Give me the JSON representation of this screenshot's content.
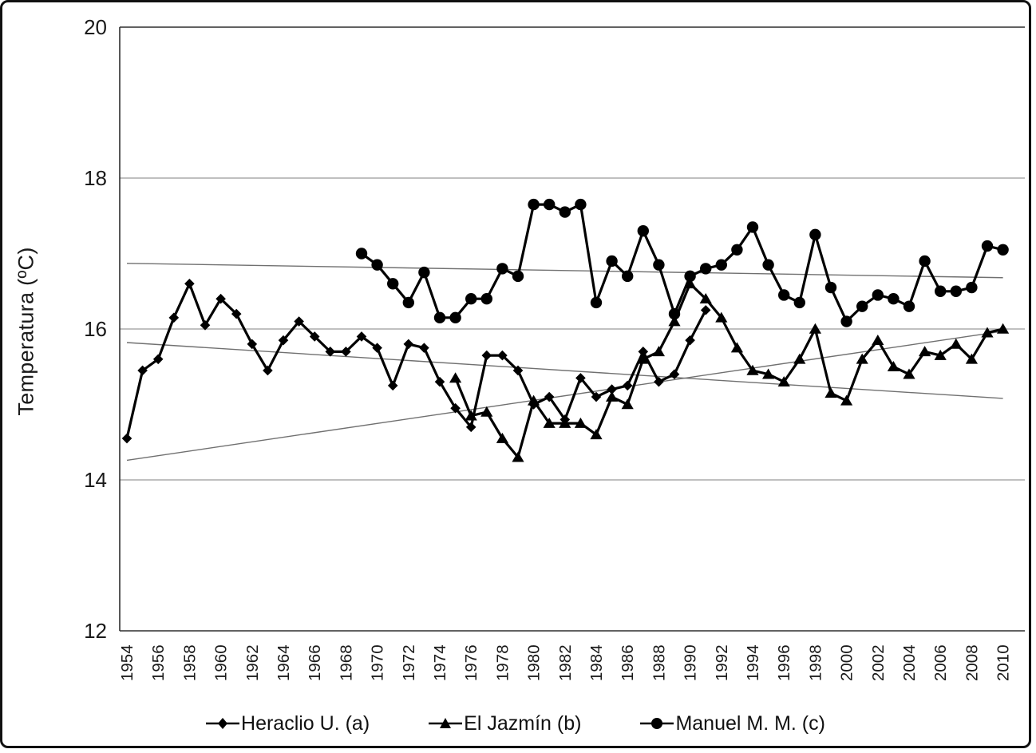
{
  "page": {
    "background": "#ffffff",
    "border_color": "#111111"
  },
  "chart_data": {
    "type": "line",
    "title": "",
    "xlabel": "",
    "ylabel": "Temperatura (ºC)",
    "ylim": [
      12,
      20
    ],
    "yticks": [
      12,
      14,
      16,
      18,
      20
    ],
    "grid_y": [
      14,
      16,
      18
    ],
    "xticks": [
      1954,
      1956,
      1958,
      1960,
      1962,
      1964,
      1966,
      1968,
      1970,
      1972,
      1974,
      1976,
      1978,
      1980,
      1982,
      1984,
      1986,
      1988,
      1990,
      1992,
      1994,
      1996,
      1998,
      2000,
      2002,
      2004,
      2006,
      2008,
      2010
    ],
    "x_range": [
      1954,
      2010
    ],
    "legend_position": "bottom",
    "colors": {
      "series": "#000000",
      "grid": "#9b9b9b",
      "axis": "#2e2e2e",
      "trend": "#707070"
    },
    "series": [
      {
        "name": "Heraclio U. (a)",
        "marker": "diamond",
        "color": "#000000",
        "start_year": 1954,
        "values": [
          14.55,
          15.45,
          15.6,
          16.15,
          16.6,
          16.05,
          16.4,
          16.2,
          15.8,
          15.45,
          15.85,
          16.1,
          15.9,
          15.7,
          15.7,
          15.9,
          15.75,
          15.25,
          15.8,
          15.75,
          15.3,
          14.95,
          14.7,
          15.65,
          15.65,
          15.45,
          15.0,
          15.1,
          14.8,
          15.35,
          15.1,
          15.2,
          15.25,
          15.7,
          15.3,
          15.4,
          15.85,
          16.25
        ]
      },
      {
        "name": "El Jazmín (b)",
        "marker": "triangle",
        "color": "#000000",
        "start_year": 1975,
        "values": [
          15.35,
          14.85,
          14.9,
          14.55,
          14.3,
          15.05,
          14.75,
          14.75,
          14.75,
          14.6,
          15.1,
          15.0,
          15.6,
          15.7,
          16.1,
          16.6,
          16.4,
          16.15,
          15.75,
          15.45,
          15.4,
          15.3,
          15.6,
          16.0,
          15.15,
          15.05,
          15.6,
          15.85,
          15.5,
          15.4,
          15.7,
          15.65,
          15.8,
          15.6,
          15.95,
          16.0
        ]
      },
      {
        "name": "Manuel M. M. (c)",
        "marker": "circle",
        "color": "#000000",
        "start_year": 1969,
        "values": [
          17.0,
          16.85,
          16.6,
          16.35,
          16.75,
          16.15,
          16.15,
          16.4,
          16.4,
          16.8,
          16.7,
          17.65,
          17.65,
          17.55,
          17.65,
          16.35,
          16.9,
          16.7,
          17.3,
          16.85,
          16.2,
          16.7,
          16.8,
          16.85,
          17.05,
          17.35,
          16.85,
          16.45,
          16.35,
          17.25,
          16.55,
          16.1,
          16.3,
          16.45,
          16.4,
          16.3,
          16.9,
          16.5,
          16.5,
          16.55,
          17.1,
          17.05
        ]
      }
    ],
    "trend_lines": [
      {
        "name": "Heraclio U. (a) trend",
        "x0": 1954,
        "y0": 15.82,
        "x1": 2010,
        "y1": 15.08
      },
      {
        "name": "El Jazmín (b) trend",
        "x0": 1954,
        "y0": 14.26,
        "x1": 2010,
        "y1": 15.97
      },
      {
        "name": "Manuel M. M. (c) trend",
        "x0": 1954,
        "y0": 16.87,
        "x1": 2010,
        "y1": 16.68
      }
    ]
  }
}
